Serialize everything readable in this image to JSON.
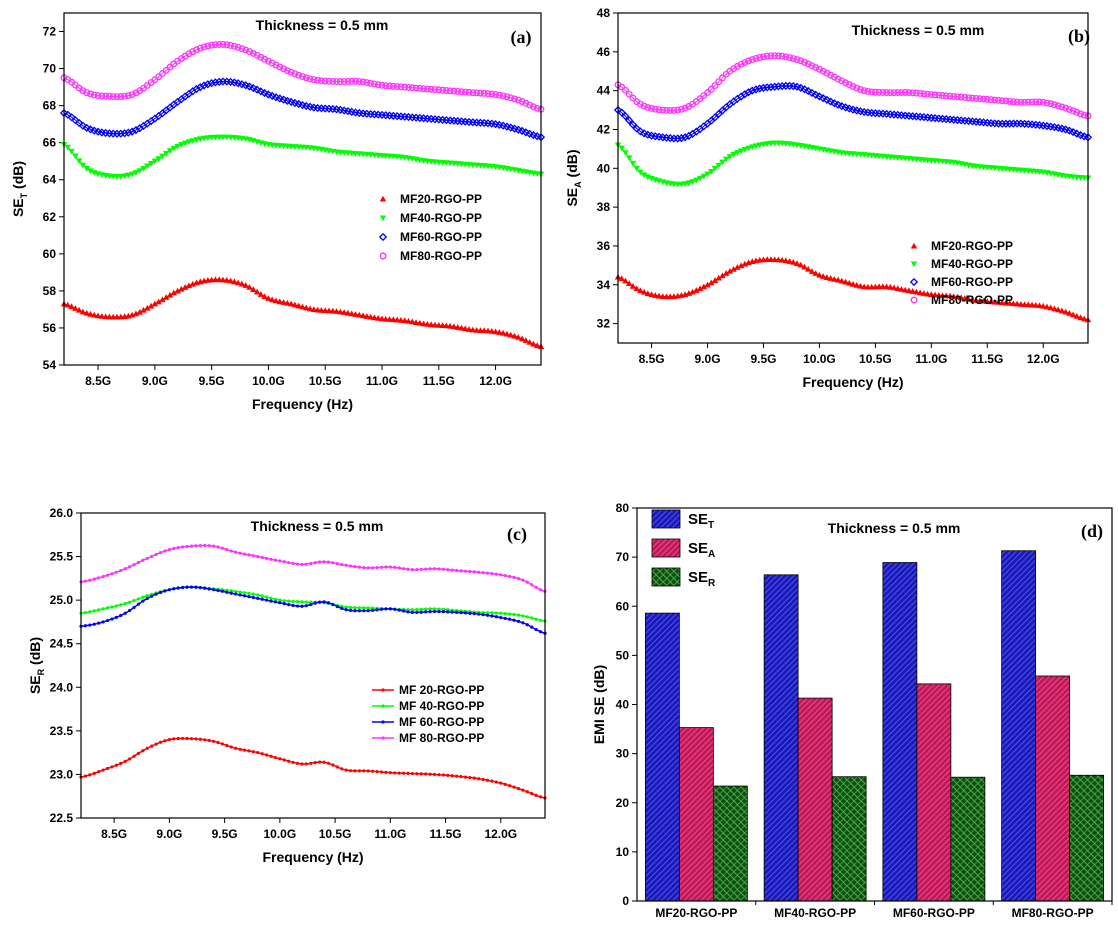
{
  "chart_data": [
    {
      "panel": "a",
      "type": "line",
      "panel_label": "(a)",
      "annotation": "Thickness = 0.5 mm",
      "xlabel": "Frequency (Hz)",
      "ylabel": "SE",
      "ylabel_sub": "T",
      "ylabel_suffix": " (dB)",
      "xlim": [
        8.2,
        12.4
      ],
      "ylim": [
        54,
        73
      ],
      "xticks": [
        8.5,
        9.0,
        9.5,
        10.0,
        10.5,
        11.0,
        11.5,
        12.0
      ],
      "xtick_labels": [
        "8.5G",
        "9.0G",
        "9.5G",
        "10.0G",
        "10.5G",
        "11.0G",
        "11.5G",
        "12.0G"
      ],
      "yticks": [
        54,
        56,
        58,
        60,
        62,
        64,
        66,
        68,
        70,
        72
      ],
      "ytick_labels": [
        "54",
        "56",
        "58",
        "60",
        "62",
        "64",
        "66",
        "68",
        "70",
        "72"
      ],
      "legend": "middle-right",
      "x": [
        8.2,
        8.4,
        8.6,
        8.8,
        9.0,
        9.2,
        9.4,
        9.6,
        9.8,
        10.0,
        10.2,
        10.4,
        10.6,
        10.8,
        11.0,
        11.2,
        11.4,
        11.6,
        11.8,
        12.0,
        12.2,
        12.4
      ],
      "series": [
        {
          "name": "MF20-RGO-PP",
          "color": "#ff0000",
          "marker": "triangle-up",
          "values": [
            57.3,
            56.8,
            56.6,
            56.7,
            57.3,
            58.0,
            58.5,
            58.6,
            58.3,
            57.6,
            57.3,
            57.0,
            56.9,
            56.7,
            56.5,
            56.4,
            56.2,
            56.1,
            55.9,
            55.8,
            55.5,
            55.0
          ]
        },
        {
          "name": "MF40-RGO-PP",
          "color": "#00ff00",
          "marker": "triangle-down",
          "values": [
            65.9,
            64.6,
            64.2,
            64.3,
            65.0,
            65.8,
            66.2,
            66.3,
            66.2,
            65.9,
            65.8,
            65.7,
            65.5,
            65.4,
            65.3,
            65.2,
            65.0,
            64.9,
            64.8,
            64.7,
            64.5,
            64.3
          ]
        },
        {
          "name": "MF60-RGO-PP",
          "color": "#0000ff",
          "marker": "diamond",
          "values": [
            67.6,
            66.8,
            66.5,
            66.6,
            67.3,
            68.2,
            69.0,
            69.3,
            69.1,
            68.6,
            68.2,
            67.9,
            67.8,
            67.6,
            67.5,
            67.4,
            67.3,
            67.2,
            67.1,
            67.0,
            66.7,
            66.3
          ]
        },
        {
          "name": "MF80-RGO-PP",
          "color": "#ff33ff",
          "marker": "circle",
          "values": [
            69.5,
            68.7,
            68.5,
            68.6,
            69.4,
            70.4,
            71.1,
            71.3,
            71.0,
            70.4,
            69.8,
            69.4,
            69.3,
            69.3,
            69.1,
            69.0,
            68.9,
            68.8,
            68.7,
            68.6,
            68.3,
            67.8
          ]
        }
      ]
    },
    {
      "panel": "b",
      "type": "line",
      "panel_label": "(b)",
      "annotation": "Thickness = 0.5 mm",
      "xlabel": "Frequency (Hz)",
      "ylabel": "SE",
      "ylabel_sub": "A",
      "ylabel_suffix": " (dB)",
      "xlim": [
        8.2,
        12.4
      ],
      "ylim": [
        31,
        48
      ],
      "xticks": [
        8.5,
        9.0,
        9.5,
        10.0,
        10.5,
        11.0,
        11.5,
        12.0
      ],
      "xtick_labels": [
        "8.5G",
        "9.0G",
        "9.5G",
        "10.0G",
        "10.5G",
        "11.0G",
        "11.5G",
        "12.0G"
      ],
      "yticks": [
        32,
        34,
        36,
        38,
        40,
        42,
        44,
        46,
        48
      ],
      "ytick_labels": [
        "32",
        "34",
        "36",
        "38",
        "40",
        "42",
        "44",
        "46",
        "48"
      ],
      "legend": "lower-right",
      "x": [
        8.2,
        8.4,
        8.6,
        8.8,
        9.0,
        9.2,
        9.4,
        9.6,
        9.8,
        10.0,
        10.2,
        10.4,
        10.6,
        10.8,
        11.0,
        11.2,
        11.4,
        11.6,
        11.8,
        12.0,
        12.2,
        12.4
      ],
      "series": [
        {
          "name": "MF20-RGO-PP",
          "color": "#ff0000",
          "marker": "triangle-up",
          "values": [
            34.4,
            33.7,
            33.4,
            33.5,
            34.0,
            34.7,
            35.2,
            35.3,
            35.1,
            34.5,
            34.2,
            33.9,
            33.9,
            33.7,
            33.5,
            33.4,
            33.2,
            33.1,
            33.0,
            32.9,
            32.6,
            32.2
          ]
        },
        {
          "name": "MF40-RGO-PP",
          "color": "#00ff00",
          "marker": "triangle-down",
          "values": [
            41.2,
            39.8,
            39.3,
            39.2,
            39.7,
            40.6,
            41.1,
            41.3,
            41.2,
            41.0,
            40.8,
            40.7,
            40.6,
            40.5,
            40.4,
            40.3,
            40.1,
            40.0,
            39.9,
            39.8,
            39.6,
            39.5
          ]
        },
        {
          "name": "MF60-RGO-PP",
          "color": "#0000ff",
          "marker": "diamond",
          "values": [
            43.0,
            41.9,
            41.6,
            41.6,
            42.3,
            43.3,
            44.0,
            44.2,
            44.2,
            43.7,
            43.2,
            42.9,
            42.8,
            42.7,
            42.6,
            42.5,
            42.4,
            42.3,
            42.3,
            42.2,
            42.0,
            41.6
          ]
        },
        {
          "name": "MF80-RGO-PP",
          "color": "#ff33ff",
          "marker": "circle",
          "values": [
            44.3,
            43.3,
            43.0,
            43.1,
            43.9,
            45.0,
            45.6,
            45.8,
            45.6,
            45.1,
            44.5,
            44.0,
            43.9,
            43.9,
            43.8,
            43.7,
            43.6,
            43.5,
            43.4,
            43.4,
            43.1,
            42.7
          ]
        }
      ]
    },
    {
      "panel": "c",
      "type": "line",
      "panel_label": "(c)",
      "annotation": "Thickness = 0.5 mm",
      "xlabel": "Frequency (Hz)",
      "ylabel": "SE",
      "ylabel_sub": "R",
      "ylabel_suffix": " (dB)",
      "xlim": [
        8.2,
        12.4
      ],
      "ylim": [
        22.5,
        26.0
      ],
      "xticks": [
        8.5,
        9.0,
        9.5,
        10.0,
        10.5,
        11.0,
        11.5,
        12.0
      ],
      "xtick_labels": [
        "8.5G",
        "9.0G",
        "9.5G",
        "10.0G",
        "10.5G",
        "11.0G",
        "11.5G",
        "12.0G"
      ],
      "yticks": [
        22.5,
        23.0,
        23.5,
        24.0,
        24.5,
        25.0,
        25.5,
        26.0
      ],
      "ytick_labels": [
        "22.5",
        "23.0",
        "23.5",
        "24.0",
        "24.5",
        "25.0",
        "25.5",
        "26.0"
      ],
      "legend": "middle-right",
      "x": [
        8.2,
        8.4,
        8.6,
        8.8,
        9.0,
        9.2,
        9.4,
        9.6,
        9.8,
        10.0,
        10.2,
        10.4,
        10.6,
        10.8,
        11.0,
        11.2,
        11.4,
        11.6,
        11.8,
        12.0,
        12.2,
        12.4
      ],
      "series": [
        {
          "name": "MF 20-RGO-PP",
          "color": "#ff0000",
          "marker": "dot",
          "values": [
            22.97,
            23.05,
            23.15,
            23.3,
            23.4,
            23.41,
            23.38,
            23.3,
            23.25,
            23.18,
            23.12,
            23.14,
            23.05,
            23.04,
            23.02,
            23.01,
            23.0,
            22.98,
            22.95,
            22.9,
            22.82,
            22.73
          ]
        },
        {
          "name": "MF 40-RGO-PP",
          "color": "#00ff00",
          "marker": "dot",
          "values": [
            24.85,
            24.9,
            24.96,
            25.05,
            25.12,
            25.15,
            25.13,
            25.1,
            25.06,
            25.0,
            24.98,
            24.97,
            24.92,
            24.91,
            24.9,
            24.89,
            24.9,
            24.88,
            24.86,
            24.85,
            24.82,
            24.76
          ]
        },
        {
          "name": "MF 60-RGO-PP",
          "color": "#0000ff",
          "marker": "dot",
          "values": [
            24.7,
            24.75,
            24.85,
            25.02,
            25.12,
            25.15,
            25.12,
            25.07,
            25.02,
            24.97,
            24.93,
            24.98,
            24.89,
            24.88,
            24.9,
            24.86,
            24.87,
            24.86,
            24.84,
            24.8,
            24.74,
            24.62
          ]
        },
        {
          "name": "MF 80-RGO-PP",
          "color": "#ff33ff",
          "marker": "dot",
          "values": [
            25.21,
            25.27,
            25.36,
            25.48,
            25.58,
            25.62,
            25.62,
            25.55,
            25.5,
            25.45,
            25.41,
            25.44,
            25.4,
            25.37,
            25.38,
            25.35,
            25.36,
            25.34,
            25.32,
            25.29,
            25.23,
            25.1
          ]
        }
      ]
    },
    {
      "panel": "d",
      "type": "bar",
      "panel_label": "(d)",
      "annotation": "Thickness = 0.5 mm",
      "xlabel": "",
      "ylabel": "EMI SE (dB)",
      "ylim": [
        0,
        80
      ],
      "yticks": [
        0,
        10,
        20,
        30,
        40,
        50,
        60,
        70,
        80
      ],
      "ytick_labels": [
        "0",
        "10",
        "20",
        "30",
        "40",
        "50",
        "60",
        "70",
        "80"
      ],
      "legend": "top-left",
      "categories": [
        "MF20-RGO-PP",
        "MF40-RGO-PP",
        "MF60-RGO-PP",
        "MF80-RGO-PP"
      ],
      "series": [
        {
          "name": "SE",
          "sub": "T",
          "color": "#1a1ab8",
          "hatch": "#6464ff",
          "values": [
            58.6,
            66.4,
            68.9,
            71.3
          ]
        },
        {
          "name": "SE",
          "sub": "A",
          "color": "#c2185b",
          "hatch": "#f06292",
          "values": [
            35.3,
            41.3,
            44.2,
            45.8
          ]
        },
        {
          "name": "SE",
          "sub": "R",
          "color": "#0f4f0f",
          "hatch": "#4caf50",
          "values": [
            23.4,
            25.3,
            25.2,
            25.6
          ]
        }
      ]
    }
  ]
}
